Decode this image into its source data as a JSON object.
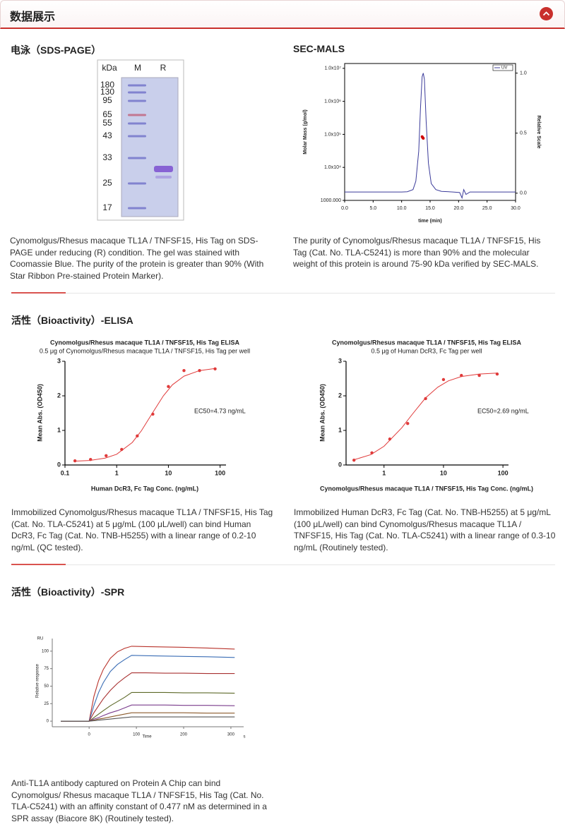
{
  "header": {
    "title": "数据展示"
  },
  "sds_page": {
    "title": "电泳（SDS-PAGE）",
    "lanes": [
      "kDa",
      "M",
      "R"
    ],
    "markers": [
      180,
      130,
      95,
      65,
      55,
      43,
      33,
      25,
      17
    ],
    "caption": "Cynomolgus/Rhesus macaque TL1A / TNFSF15, His Tag on SDS-PAGE under reducing (R) condition. The gel was stained with Coomassie Blue. The purity of the protein is greater than 90% (With Star Ribbon Pre-stained Protein Marker)."
  },
  "sec_mals": {
    "title": "SEC-MALS",
    "caption": "The purity of Cynomolgus/Rhesus macaque TL1A / TNFSF15, His Tag (Cat. No. TLA-C5241) is more than 90% and the molecular weight of this protein is around 75-90 kDa verified by SEC-MALS.",
    "chart_data": {
      "type": "line",
      "x_label": "time (min)",
      "y_label": "Molar Mass (g/mol)",
      "y2_label": "Relative Scale",
      "ylog": true,
      "xlim": [
        0,
        30
      ],
      "xticks": [
        {
          "value": 0,
          "label": "0.0"
        },
        {
          "value": 5,
          "label": "5.0"
        },
        {
          "value": 10,
          "label": "10.0"
        },
        {
          "value": 15,
          "label": "15.0"
        },
        {
          "value": 20,
          "label": "20.0"
        },
        {
          "value": 25,
          "label": "25.0"
        },
        {
          "value": 30,
          "label": "30.0"
        }
      ],
      "ylim": [
        1000,
        14000000
      ],
      "yticks": [
        {
          "value": 1000,
          "label": "1000.000"
        },
        {
          "value": 10000,
          "label": "1.0x10⁴"
        },
        {
          "value": 100000,
          "label": "1.0x10⁵"
        },
        {
          "value": 1000000,
          "label": "1.0x10⁶"
        },
        {
          "value": 10000000,
          "label": "1.0x10⁷"
        }
      ],
      "y2lim": [
        -0.06,
        1.08
      ],
      "y2ticks": [
        {
          "value": 0,
          "label": "0.0"
        },
        0.5,
        {
          "value": 1,
          "label": "1.0"
        }
      ],
      "legend": "upper right",
      "series": [
        {
          "name": "UV",
          "color": "#3b3b9a",
          "axis": "y2",
          "x": [
            0,
            5,
            10,
            11,
            12,
            12.5,
            13,
            13.3,
            13.6,
            13.8,
            14.0,
            14.3,
            14.7,
            15.2,
            16,
            17,
            19,
            20.2,
            20.6,
            20.9,
            21.3,
            22,
            25,
            30
          ],
          "values": [
            0.01,
            0.01,
            0.01,
            0.012,
            0.03,
            0.1,
            0.35,
            0.7,
            0.97,
            1.0,
            0.95,
            0.6,
            0.25,
            0.08,
            0.03,
            0.015,
            0.01,
            0.005,
            -0.04,
            0.03,
            -0.01,
            0.01,
            0.01,
            0.01
          ]
        },
        {
          "type": "scatter",
          "color": "#d00000",
          "x": [
            13.6,
            13.7,
            13.8
          ],
          "values": [
            85000,
            80000,
            76000
          ]
        }
      ]
    }
  },
  "elisa": {
    "title": "活性（Bioactivity）-ELISA",
    "panels": [
      {
        "chart_data": {
          "type": "scatter",
          "title": "Cynomolgus/Rhesus macaque TL1A / TNFSF15, His Tag  ELISA",
          "subtitle": "0.5 μg of Cynomolgus/Rhesus macaque TL1A / TNFSF15, His Tag  per well",
          "x_label": "Human DcR3, Fc Tag Conc. (ng/mL)",
          "y_label": "Mean Abs. (OD450)",
          "annotation": "EC50=4.73 ng/mL",
          "xlog": true,
          "xlim": [
            0.1,
            130
          ],
          "xticks": [
            0.1,
            1,
            10,
            100
          ],
          "ylim": [
            0,
            3
          ],
          "yticks": [
            0,
            1,
            2,
            3
          ],
          "series": [
            {
              "type": "line",
              "color": "#e03a3a",
              "x": [
                0.15,
                0.3,
                0.6,
                1,
                2,
                3,
                5,
                8,
                12,
                20,
                40,
                80
              ],
              "values": [
                0.11,
                0.13,
                0.2,
                0.31,
                0.65,
                0.99,
                1.52,
                2.0,
                2.32,
                2.57,
                2.73,
                2.79
              ]
            },
            {
              "type": "scatter",
              "color": "#e03a3a",
              "x": [
                0.156,
                0.3125,
                0.625,
                1.25,
                2.5,
                5,
                10,
                20,
                40,
                80
              ],
              "values": [
                0.12,
                0.16,
                0.27,
                0.45,
                0.84,
                1.47,
                2.27,
                2.73,
                2.73,
                2.78
              ]
            }
          ]
        },
        "caption": "Immobilized Cynomolgus/Rhesus macaque TL1A / TNFSF15, His Tag (Cat. No. TLA-C5241) at 5 μg/mL (100 μL/well) can bind Human DcR3, Fc Tag (Cat. No. TNB-H5255) with a linear range of 0.2-10 ng/mL (QC tested)."
      },
      {
        "chart_data": {
          "type": "scatter",
          "title": "Cynomolgus/Rhesus macaque TL1A / TNFSF15, His Tag  ELISA",
          "subtitle": "0.5 μg of Human DcR3, Fc Tag per well",
          "x_label": "Cynomolgus/Rhesus macaque TL1A / TNFSF15, His Tag  Conc. (ng/mL)",
          "y_label": "Mean Abs. (OD450)",
          "annotation": "EC50=2.69 ng/mL",
          "xlog": true,
          "xlim": [
            0.23,
            124
          ],
          "xticks": [
            1,
            10,
            100
          ],
          "ylim": [
            0,
            3
          ],
          "yticks": [
            0,
            1,
            2,
            3
          ],
          "series": [
            {
              "type": "line",
              "color": "#e03a3a",
              "x": [
                0.3,
                0.6,
                1,
                2,
                3,
                5,
                8,
                12,
                20,
                40,
                80
              ],
              "values": [
                0.14,
                0.3,
                0.54,
                1.08,
                1.47,
                1.94,
                2.25,
                2.43,
                2.56,
                2.63,
                2.66
              ]
            },
            {
              "type": "scatter",
              "color": "#e03a3a",
              "x": [
                0.3125,
                0.625,
                1.25,
                2.5,
                5,
                10,
                20,
                40,
                80
              ],
              "values": [
                0.14,
                0.35,
                0.75,
                1.2,
                1.92,
                2.47,
                2.59,
                2.59,
                2.63
              ]
            }
          ]
        },
        "caption": "Immobilized Human DcR3, Fc Tag (Cat. No. TNB-H5255) at 5 μg/mL (100 μL/well) can bind Cynomolgus/Rhesus macaque TL1A / TNFSF15, His Tag (Cat. No. TLA-C5241) with a linear range of 0.3-10 ng/mL (Routinely tested)."
      }
    ]
  },
  "spr": {
    "title": "活性（Bioactivity）-SPR",
    "caption": "Anti-TL1A antibody captured on Protein A Chip can bind Cynomolgus/ Rhesus macaque TL1A / TNFSF15, His Tag (Cat. No. TLA-C5241) with an affinity constant of 0.477 nM as determined in a SPR assay (Biacore 8K) (Routinely tested).",
    "chart_data": {
      "type": "line",
      "x_label": "Time",
      "x_unit": "s",
      "y_label": "Relative response",
      "y_unit": "RU",
      "xlim": [
        -78,
        327
      ],
      "xticks": [
        0,
        100,
        200,
        300
      ],
      "ylim": [
        -8,
        118
      ],
      "yticks": [
        0,
        25,
        50,
        75,
        100
      ],
      "x": [
        -60,
        0,
        10,
        20,
        30,
        45,
        60,
        75,
        90,
        120,
        160,
        200,
        250,
        308
      ],
      "series": [
        {
          "color": "#b8322a",
          "values": [
            0,
            0,
            35,
            58,
            74,
            90,
            99,
            104,
            107,
            106.5,
            106,
            105.5,
            104.5,
            103
          ]
        },
        {
          "color": "#3a6db5",
          "values": [
            0,
            0,
            22,
            41,
            55,
            71,
            81,
            88,
            94,
            93.5,
            93,
            92.5,
            92,
            91
          ]
        },
        {
          "color": "#a83030",
          "values": [
            0,
            0,
            12,
            22,
            32,
            44,
            54,
            62,
            69,
            69,
            68.5,
            68.5,
            68,
            68
          ]
        },
        {
          "color": "#5e6a2a",
          "values": [
            0,
            0,
            5,
            10,
            15,
            22,
            28,
            34,
            41,
            41,
            41,
            40.5,
            40.5,
            40
          ]
        },
        {
          "color": "#7a3c8c",
          "values": [
            0,
            0,
            3,
            5,
            8,
            12,
            15,
            19,
            23,
            23,
            23,
            22.5,
            22.5,
            22
          ]
        },
        {
          "color": "#8b5a2b",
          "values": [
            0,
            0,
            1.5,
            3,
            4,
            6,
            8,
            10,
            12,
            12,
            12,
            12,
            11.5,
            11.5
          ]
        },
        {
          "color": "#555555",
          "values": [
            0,
            0,
            0.7,
            1.4,
            2,
            3,
            4,
            5,
            6,
            6,
            6,
            6,
            6,
            6
          ]
        }
      ]
    }
  }
}
